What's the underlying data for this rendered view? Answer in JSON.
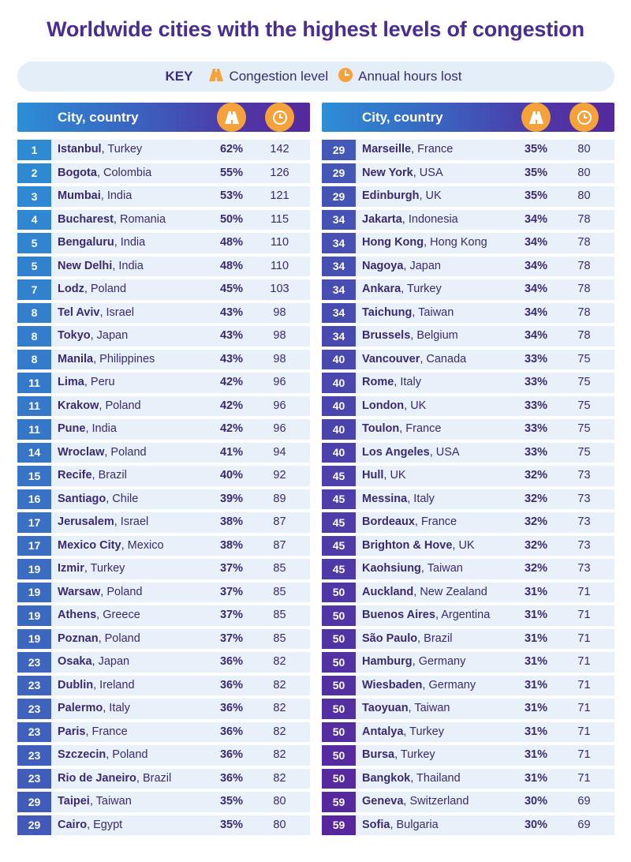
{
  "title": "Worldwide cities with the highest levels of congestion",
  "key": {
    "label": "KEY",
    "congestion": "Congestion level",
    "hours": "Annual hours lost"
  },
  "header": {
    "city_label": "City, country"
  },
  "colors": {
    "title": "#4a2d91",
    "accent_orange": "#f5a23a",
    "row_bg": "#e8f0f9",
    "rank_gradient_start": "#2e8bd3",
    "rank_gradient_end": "#57269c"
  },
  "icons": {
    "congestion": "road-icon",
    "hours": "clock-icon"
  },
  "left_rows": [
    {
      "rank": "1",
      "city": "Istanbul",
      "country": ", Turkey",
      "pct": "62%",
      "hours": "142"
    },
    {
      "rank": "2",
      "city": "Bogota",
      "country": ", Colombia",
      "pct": "55%",
      "hours": "126"
    },
    {
      "rank": "3",
      "city": "Mumbai",
      "country": ", India",
      "pct": "53%",
      "hours": "121"
    },
    {
      "rank": "4",
      "city": "Bucharest",
      "country": ", Romania",
      "pct": "50%",
      "hours": "115"
    },
    {
      "rank": "5",
      "city": "Bengaluru",
      "country": ", India",
      "pct": "48%",
      "hours": "110"
    },
    {
      "rank": "5",
      "city": "New Delhi",
      "country": ", India",
      "pct": "48%",
      "hours": "110"
    },
    {
      "rank": "7",
      "city": "Lodz",
      "country": ", Poland",
      "pct": "45%",
      "hours": "103"
    },
    {
      "rank": "8",
      "city": "Tel Aviv",
      "country": ", Israel",
      "pct": "43%",
      "hours": "98"
    },
    {
      "rank": "8",
      "city": "Tokyo",
      "country": ", Japan",
      "pct": "43%",
      "hours": "98"
    },
    {
      "rank": "8",
      "city": "Manila",
      "country": ", Philippines",
      "pct": "43%",
      "hours": "98"
    },
    {
      "rank": "11",
      "city": "Lima",
      "country": ", Peru",
      "pct": "42%",
      "hours": "96"
    },
    {
      "rank": "11",
      "city": "Krakow",
      "country": ", Poland",
      "pct": "42%",
      "hours": "96"
    },
    {
      "rank": "11",
      "city": "Pune",
      "country": ", India",
      "pct": "42%",
      "hours": "96"
    },
    {
      "rank": "14",
      "city": "Wroclaw",
      "country": ", Poland",
      "pct": "41%",
      "hours": "94"
    },
    {
      "rank": "15",
      "city": "Recife",
      "country": ", Brazil",
      "pct": "40%",
      "hours": "92"
    },
    {
      "rank": "16",
      "city": "Santiago",
      "country": ", Chile",
      "pct": "39%",
      "hours": "89"
    },
    {
      "rank": "17",
      "city": "Jerusalem",
      "country": ", Israel",
      "pct": "38%",
      "hours": "87"
    },
    {
      "rank": "17",
      "city": "Mexico City",
      "country": ", Mexico",
      "pct": "38%",
      "hours": "87"
    },
    {
      "rank": "19",
      "city": "Izmir",
      "country": ", Turkey",
      "pct": "37%",
      "hours": "85"
    },
    {
      "rank": "19",
      "city": "Warsaw",
      "country": ", Poland",
      "pct": "37%",
      "hours": "85"
    },
    {
      "rank": "19",
      "city": "Athens",
      "country": ", Greece",
      "pct": "37%",
      "hours": "85"
    },
    {
      "rank": "19",
      "city": "Poznan",
      "country": ", Poland",
      "pct": "37%",
      "hours": "85"
    },
    {
      "rank": "23",
      "city": "Osaka",
      "country": ", Japan",
      "pct": "36%",
      "hours": "82"
    },
    {
      "rank": "23",
      "city": "Dublin",
      "country": ", Ireland",
      "pct": "36%",
      "hours": "82"
    },
    {
      "rank": "23",
      "city": "Palermo",
      "country": ", Italy",
      "pct": "36%",
      "hours": "82"
    },
    {
      "rank": "23",
      "city": "Paris",
      "country": ", France",
      "pct": "36%",
      "hours": "82"
    },
    {
      "rank": "23",
      "city": "Szczecin",
      "country": ", Poland",
      "pct": "36%",
      "hours": "82"
    },
    {
      "rank": "23",
      "city": "Rio de Janeiro",
      "country": ", Brazil",
      "pct": "36%",
      "hours": "82"
    },
    {
      "rank": "29",
      "city": "Taipei",
      "country": ", Taiwan",
      "pct": "35%",
      "hours": "80"
    },
    {
      "rank": "29",
      "city": "Cairo",
      "country": ", Egypt",
      "pct": "35%",
      "hours": "80"
    }
  ],
  "right_rows": [
    {
      "rank": "29",
      "city": "Marseille",
      "country": ", France",
      "pct": "35%",
      "hours": "80"
    },
    {
      "rank": "29",
      "city": "New York",
      "country": ", USA",
      "pct": "35%",
      "hours": "80"
    },
    {
      "rank": "29",
      "city": "Edinburgh",
      "country": ", UK",
      "pct": "35%",
      "hours": "80"
    },
    {
      "rank": "34",
      "city": "Jakarta",
      "country": ", Indonesia",
      "pct": "34%",
      "hours": "78"
    },
    {
      "rank": "34",
      "city": "Hong Kong",
      "country": ", Hong Kong",
      "pct": "34%",
      "hours": "78"
    },
    {
      "rank": "34",
      "city": "Nagoya",
      "country": ", Japan",
      "pct": "34%",
      "hours": "78"
    },
    {
      "rank": "34",
      "city": "Ankara",
      "country": ", Turkey",
      "pct": "34%",
      "hours": "78"
    },
    {
      "rank": "34",
      "city": "Taichung",
      "country": ", Taiwan",
      "pct": "34%",
      "hours": "78"
    },
    {
      "rank": "34",
      "city": "Brussels",
      "country": ", Belgium",
      "pct": "34%",
      "hours": "78"
    },
    {
      "rank": "40",
      "city": "Vancouver",
      "country": ", Canada",
      "pct": "33%",
      "hours": "75"
    },
    {
      "rank": "40",
      "city": "Rome",
      "country": ", Italy",
      "pct": "33%",
      "hours": "75"
    },
    {
      "rank": "40",
      "city": "London",
      "country": ", UK",
      "pct": "33%",
      "hours": "75"
    },
    {
      "rank": "40",
      "city": "Toulon",
      "country": ", France",
      "pct": "33%",
      "hours": "75"
    },
    {
      "rank": "40",
      "city": "Los Angeles",
      "country": ", USA",
      "pct": "33%",
      "hours": "75"
    },
    {
      "rank": "45",
      "city": "Hull",
      "country": ", UK",
      "pct": "32%",
      "hours": "73"
    },
    {
      "rank": "45",
      "city": "Messina",
      "country": ", Italy",
      "pct": "32%",
      "hours": "73"
    },
    {
      "rank": "45",
      "city": "Bordeaux",
      "country": ", France",
      "pct": "32%",
      "hours": "73"
    },
    {
      "rank": "45",
      "city": "Brighton & Hove",
      "country": ", UK",
      "pct": "32%",
      "hours": "73"
    },
    {
      "rank": "45",
      "city": "Kaohsiung",
      "country": ", Taiwan",
      "pct": "32%",
      "hours": "73"
    },
    {
      "rank": "50",
      "city": "Auckland",
      "country": ", New Zealand",
      "pct": "31%",
      "hours": "71"
    },
    {
      "rank": "50",
      "city": "Buenos Aires",
      "country": ", Argentina",
      "pct": "31%",
      "hours": "71"
    },
    {
      "rank": "50",
      "city": "São Paulo",
      "country": ", Brazil",
      "pct": "31%",
      "hours": "71"
    },
    {
      "rank": "50",
      "city": "Hamburg",
      "country": ", Germany",
      "pct": "31%",
      "hours": "71"
    },
    {
      "rank": "50",
      "city": "Wiesbaden",
      "country": ", Germany",
      "pct": "31%",
      "hours": "71"
    },
    {
      "rank": "50",
      "city": "Taoyuan",
      "country": ", Taiwan",
      "pct": "31%",
      "hours": "71"
    },
    {
      "rank": "50",
      "city": "Antalya",
      "country": ", Turkey",
      "pct": "31%",
      "hours": "71"
    },
    {
      "rank": "50",
      "city": "Bursa",
      "country": ", Turkey",
      "pct": "31%",
      "hours": "71"
    },
    {
      "rank": "50",
      "city": "Bangkok",
      "country": ", Thailand",
      "pct": "31%",
      "hours": "71"
    },
    {
      "rank": "59",
      "city": "Geneva",
      "country": ", Switzerland",
      "pct": "30%",
      "hours": "69"
    },
    {
      "rank": "59",
      "city": "Sofia",
      "country": ", Bulgaria",
      "pct": "30%",
      "hours": "69"
    }
  ]
}
